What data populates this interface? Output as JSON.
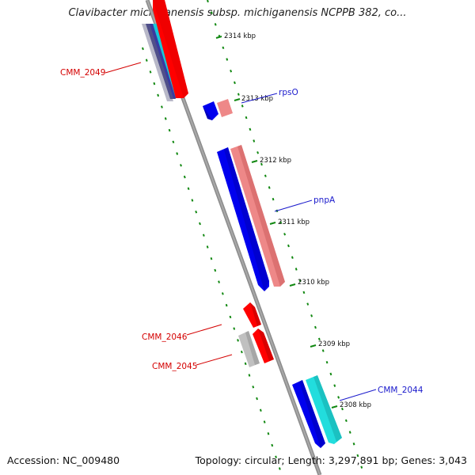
{
  "title": "Clavibacter michiganensis subsp. michiganensis NCPPB 382, co...",
  "footer": {
    "accession": "Accession: NC_009480",
    "summary": "Topology: circular; Length: 3,297,891 bp; Genes: 3,043"
  },
  "colors": {
    "backbone": "#8c8c8c",
    "ticks": "#118811",
    "forward_strong": "#ff0000",
    "forward_light": "#ee8888",
    "reverse_strong": "#0000ee",
    "reverse_cyan": "#22dddd",
    "gray_gene": "#c0c0c0",
    "label_red": "#d40000",
    "label_blue": "#1a1acc"
  },
  "kbp_ticks": [
    "2314 kbp",
    "2313 kbp",
    "2312 kbp",
    "2311 kbp",
    "2310 kbp",
    "2309 kbp",
    "2308 kbp"
  ],
  "gene_labels": [
    {
      "text": "CMM_2049",
      "color": "red"
    },
    {
      "text": "rpsO",
      "color": "blue"
    },
    {
      "text": "pnpA",
      "color": "blue"
    },
    {
      "text": "CMM_2046",
      "color": "red"
    },
    {
      "text": "CMM_2045",
      "color": "red"
    },
    {
      "text": "CMM_2044",
      "color": "blue"
    }
  ]
}
